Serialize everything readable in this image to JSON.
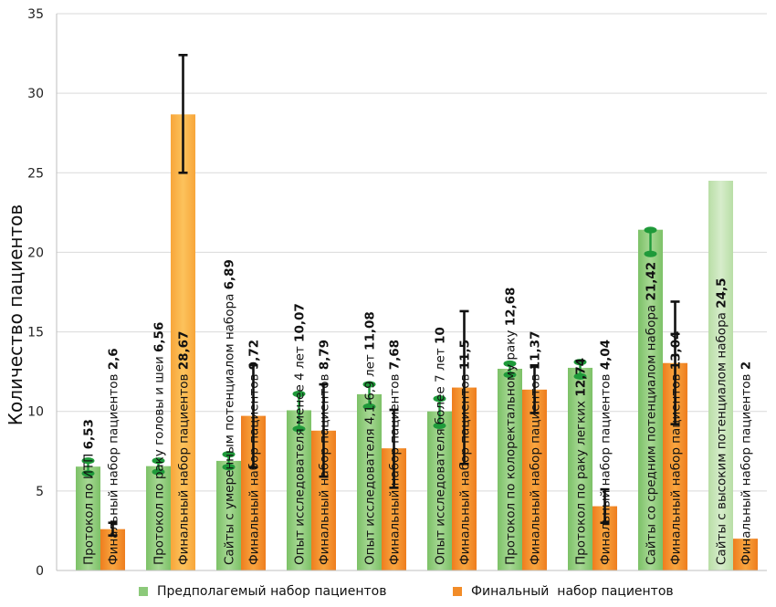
{
  "chart_data": {
    "type": "bar",
    "ylabel": "Количество пациентов",
    "ylim": [
      0,
      35
    ],
    "yticks": [
      0,
      5,
      10,
      15,
      20,
      25,
      30,
      35
    ],
    "grid": true,
    "legend_position": "bottom",
    "colors": {
      "expected_fill": "#8cc97a",
      "expected_fill_light": "#c3e3b2",
      "final_fill": "#f28c28",
      "final_fill_light": "#fbb850",
      "error_bar": "#111111",
      "range_marker": "#1f9a3a"
    },
    "series": [
      {
        "name": "Предполагемый набор пациентов",
        "key": "expected"
      },
      {
        "name": "Финальный  набор пациентов",
        "key": "final"
      }
    ],
    "bars": [
      {
        "series": "expected",
        "label": "Протокол по ИТП",
        "value_text": "6,53",
        "value": 6.53,
        "range": [
          6.1,
          6.9
        ]
      },
      {
        "series": "final",
        "label": "Финальный набор пациентов",
        "value_text": "2,6",
        "value": 2.6,
        "error": [
          2.2,
          3.0
        ]
      },
      {
        "series": "expected",
        "label": "Протокол по раку головы и шеи",
        "value_text": "6,56",
        "value": 6.56,
        "range": [
          6.2,
          6.9
        ]
      },
      {
        "series": "final",
        "label": "Финальный  набор пациентов",
        "value_text": "28,67",
        "value": 28.67,
        "error": [
          25.0,
          32.4
        ]
      },
      {
        "series": "expected",
        "label": "Сайты с умеренным потенциалом набора",
        "value_text": "6,89",
        "value": 6.89,
        "range": [
          6.5,
          7.3
        ]
      },
      {
        "series": "final",
        "label": "Финальный набор пациентов",
        "value_text": "9,72",
        "value": 9.72,
        "error": [
          6.5,
          12.9
        ]
      },
      {
        "series": "expected",
        "label": "Опыт исследователя менее 4 лет",
        "value_text": "10,07",
        "value": 10.07,
        "range": [
          8.9,
          11.1
        ]
      },
      {
        "series": "final",
        "label": "Финальный набор пациентов",
        "value_text": "8,79",
        "value": 8.79,
        "error": [
          5.9,
          11.7
        ]
      },
      {
        "series": "expected",
        "label": "Опыт исследователя 4,1-6,9 лет",
        "value_text": "11,08",
        "value": 11.08,
        "range": [
          10.3,
          11.7
        ]
      },
      {
        "series": "final",
        "label": "Финальный набор пациентов",
        "value_text": "7,68",
        "value": 7.68,
        "error": [
          5.2,
          10.1
        ]
      },
      {
        "series": "expected",
        "label": "Опыт исследователя более 7 лет",
        "value_text": "10",
        "value": 10.0,
        "range": [
          9.1,
          10.8
        ]
      },
      {
        "series": "final",
        "label": "Финальный набор пациентов",
        "value_text": "11,5",
        "value": 11.5,
        "error": [
          6.7,
          16.3
        ]
      },
      {
        "series": "expected",
        "label": "Протокол по колоректальному раку",
        "value_text": "12,68",
        "value": 12.68,
        "range": [
          12.3,
          13.0
        ]
      },
      {
        "series": "final",
        "label": "Финальный набор пациентов",
        "value_text": "11,37",
        "value": 11.37,
        "error": [
          9.9,
          12.8
        ]
      },
      {
        "series": "expected",
        "label": "Протокол по раку легких",
        "value_text": "12,74",
        "value": 12.74,
        "range": [
          12.2,
          13.1
        ]
      },
      {
        "series": "final",
        "label": "Финальный набор пациентов",
        "value_text": "4,04",
        "value": 4.04,
        "error": [
          3.0,
          5.1
        ]
      },
      {
        "series": "expected",
        "label": "Сайты со средним потенциалом набора",
        "value_text": "21,42",
        "value": 21.42,
        "range": [
          19.9,
          21.4
        ]
      },
      {
        "series": "final",
        "label": "Финальный набор пациентов",
        "value_text": "13,04",
        "value": 13.04,
        "error": [
          9.2,
          16.9
        ]
      },
      {
        "series": "expected",
        "label": "Сайты с высоким потенциалом набора",
        "value_text": "24,5",
        "value": 24.5,
        "light": true
      },
      {
        "series": "final",
        "label": "Финальный  набор пациентов",
        "value_text": "2",
        "value": 2.0
      }
    ]
  }
}
